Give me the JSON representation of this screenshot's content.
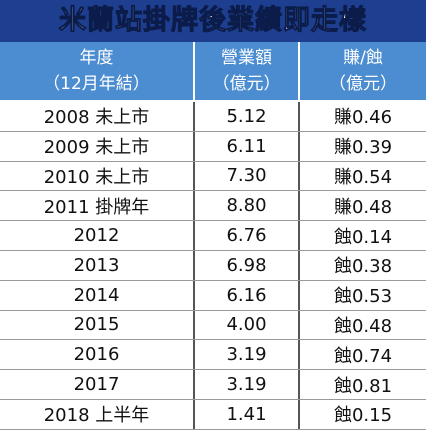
{
  "title": "米蘭站掛牌後業績即走樣",
  "table": {
    "header": [
      [
        "年度",
        "（12月年結）"
      ],
      [
        "營業額",
        "（億元）"
      ],
      [
        "賺/蝕",
        "（億元）"
      ]
    ],
    "rows": [
      [
        "2008 未上市",
        "5.12",
        "賺0.46"
      ],
      [
        "2009 未上市",
        "6.11",
        "賺0.39"
      ],
      [
        "2010 未上市",
        "7.30",
        "賺0.54"
      ],
      [
        "2011 掛牌年",
        "8.80",
        "賺0.48"
      ],
      [
        "2012",
        "6.76",
        "蝕0.14"
      ],
      [
        "2013",
        "6.98",
        "蝕0.38"
      ],
      [
        "2014",
        "6.16",
        "蝕0.53"
      ],
      [
        "2015",
        "4.00",
        "蝕0.48"
      ],
      [
        "2016",
        "3.19",
        "蝕0.74"
      ],
      [
        "2017",
        "3.19",
        "蝕0.81"
      ],
      [
        "2018 上半年",
        "1.41",
        "蝕0.15"
      ]
    ]
  }
}
